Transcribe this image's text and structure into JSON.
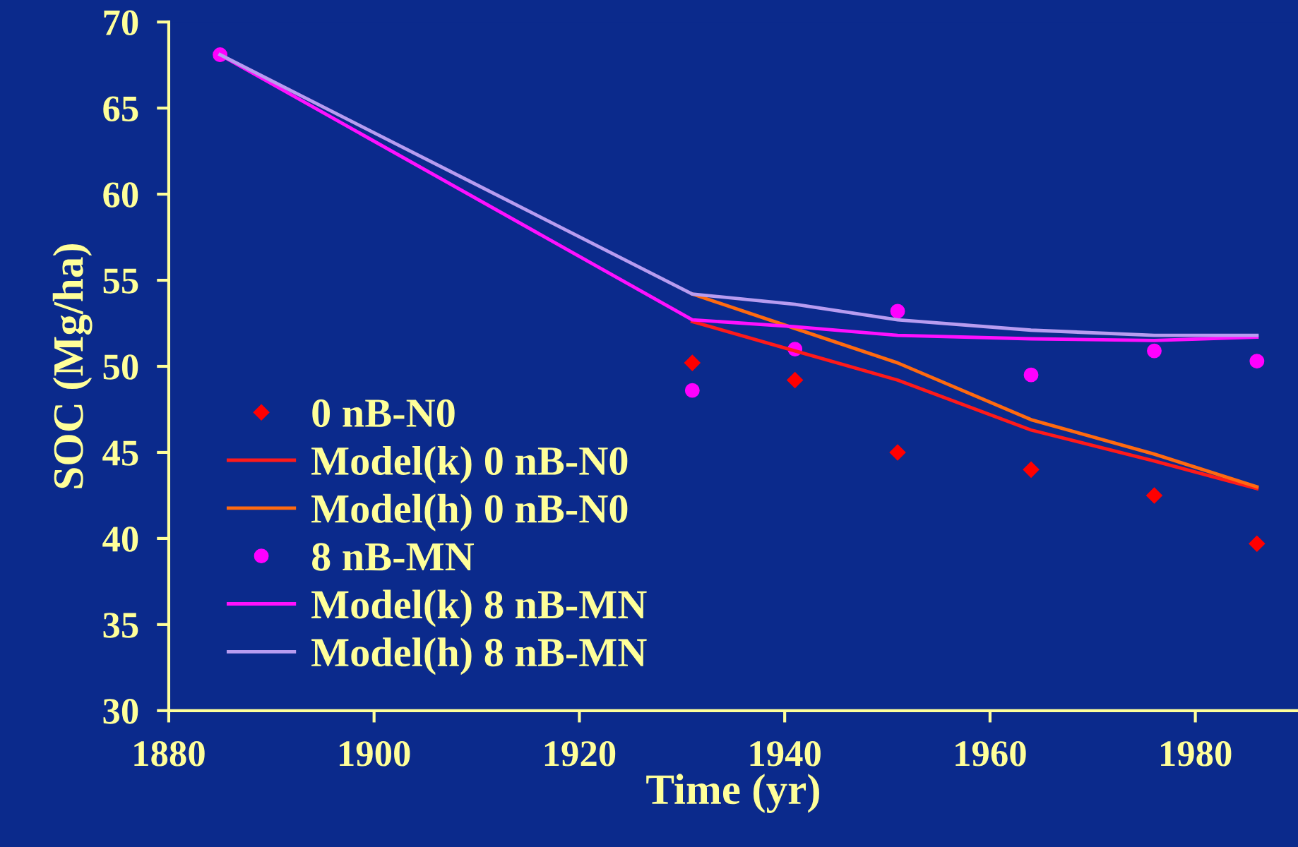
{
  "chart_data": {
    "type": "scatter",
    "xlabel": "Time (yr)",
    "ylabel": "SOC (Mg/ha)",
    "xlim": [
      1880,
      1990
    ],
    "xticks": [
      1880,
      1900,
      1920,
      1940,
      1960,
      1980
    ],
    "ylim": [
      30,
      70
    ],
    "yticks": [
      30,
      35,
      40,
      45,
      50,
      55,
      60,
      65,
      70
    ],
    "grid": false,
    "legend": "left",
    "series": [
      {
        "name": "0 nB-N0",
        "marker": "diamond",
        "color": "#ff0000",
        "x": [
          1931,
          1941,
          1951,
          1964,
          1976,
          1986
        ],
        "values": [
          50.2,
          49.2,
          45.0,
          44.0,
          42.5,
          39.7
        ]
      },
      {
        "name": "Model(k) 0 nB-N0",
        "type": "line",
        "color": "#ff1a1a",
        "x": [
          1931,
          1941,
          1951,
          1964,
          1976,
          1986
        ],
        "values": [
          52.6,
          50.9,
          49.2,
          46.3,
          44.5,
          42.9
        ]
      },
      {
        "name": "Model(h) 0 nB-N0",
        "type": "line",
        "color": "#ff6a10",
        "x": [
          1931,
          1941,
          1951,
          1964,
          1976,
          1986
        ],
        "values": [
          54.2,
          52.2,
          50.2,
          46.9,
          44.9,
          43.0
        ]
      },
      {
        "name": "8 nB-MN",
        "marker": "circle",
        "color": "#ff00ff",
        "x": [
          1885,
          1931,
          1941,
          1951,
          1964,
          1976,
          1986
        ],
        "values": [
          68.1,
          48.6,
          51.0,
          53.2,
          49.5,
          50.9,
          50.3
        ]
      },
      {
        "name": "Model(k) 8 nB-MN",
        "type": "line",
        "color": "#ff10ff",
        "x": [
          1885,
          1931,
          1941,
          1951,
          1964,
          1976,
          1986
        ],
        "values": [
          68.1,
          52.7,
          52.3,
          51.8,
          51.6,
          51.5,
          51.7
        ]
      },
      {
        "name": "Model(h) 8 nB-MN",
        "type": "line",
        "color": "#b89cf0",
        "x": [
          1885,
          1931,
          1941,
          1951,
          1964,
          1976,
          1986
        ],
        "values": [
          68.1,
          54.2,
          53.6,
          52.7,
          52.1,
          51.8,
          51.8
        ]
      }
    ]
  }
}
